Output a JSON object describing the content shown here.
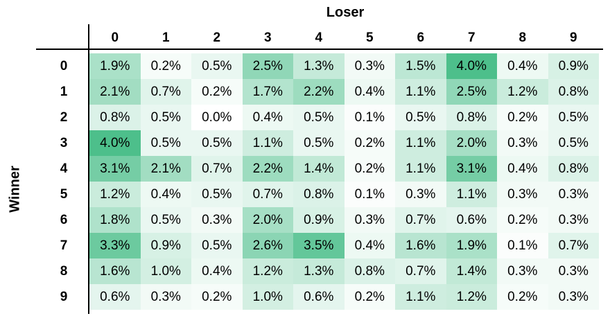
{
  "chart_data": {
    "type": "heatmap",
    "xlabel": "Loser",
    "ylabel": "Winner",
    "x_categories": [
      "0",
      "1",
      "2",
      "3",
      "4",
      "5",
      "6",
      "7",
      "8",
      "9"
    ],
    "y_categories": [
      "0",
      "1",
      "2",
      "3",
      "4",
      "5",
      "6",
      "7",
      "8",
      "9"
    ],
    "value_suffix": "%",
    "color_scale": {
      "low": "#ffffff",
      "high": "#4dbf8b"
    },
    "values": [
      [
        1.9,
        0.2,
        0.5,
        2.5,
        1.3,
        0.3,
        1.5,
        4.0,
        0.4,
        0.9
      ],
      [
        2.1,
        0.7,
        0.2,
        1.7,
        2.2,
        0.4,
        1.1,
        2.5,
        1.2,
        0.8
      ],
      [
        0.8,
        0.5,
        0.0,
        0.4,
        0.5,
        0.1,
        0.5,
        0.8,
        0.2,
        0.5
      ],
      [
        4.0,
        0.5,
        0.5,
        1.1,
        0.5,
        0.2,
        1.1,
        2.0,
        0.3,
        0.5
      ],
      [
        3.1,
        2.1,
        0.7,
        2.2,
        1.4,
        0.2,
        1.1,
        3.1,
        0.4,
        0.8
      ],
      [
        1.2,
        0.4,
        0.5,
        0.7,
        0.8,
        0.1,
        0.3,
        1.1,
        0.3,
        0.3
      ],
      [
        1.8,
        0.5,
        0.3,
        2.0,
        0.9,
        0.3,
        0.7,
        0.6,
        0.2,
        0.3
      ],
      [
        3.3,
        0.9,
        0.5,
        2.6,
        3.5,
        0.4,
        1.6,
        1.9,
        0.1,
        0.7
      ],
      [
        1.6,
        1.0,
        0.4,
        1.2,
        1.3,
        0.8,
        0.7,
        1.4,
        0.3,
        0.3
      ],
      [
        0.6,
        0.3,
        0.2,
        1.0,
        0.6,
        0.2,
        1.1,
        1.2,
        0.2,
        0.3
      ]
    ]
  }
}
